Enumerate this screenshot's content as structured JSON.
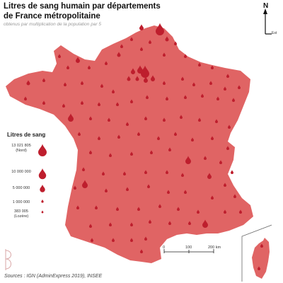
{
  "title_line1": "Litres de sang humain par départements",
  "title_line2": "de France métropolitaine",
  "subtitle": "obtenus par multiplication de la population par 5",
  "legend": {
    "title": "Litres de sang",
    "items": [
      {
        "label": "13 021 805",
        "sublabel": "(Nord)",
        "value": 13021805
      },
      {
        "label": "10 000 000",
        "sublabel": "",
        "value": 10000000
      },
      {
        "label": "5 000 000",
        "sublabel": "",
        "value": 5000000
      },
      {
        "label": "1 000 000",
        "sublabel": "",
        "value": 1000000
      },
      {
        "label": "383 005",
        "sublabel": "(Lozère)",
        "value": 383005
      }
    ]
  },
  "scale": {
    "ticks": [
      "0",
      "100",
      "200 km"
    ]
  },
  "north": {
    "n": "N",
    "e": "Est"
  },
  "sources": "Sources : IGN (AdminExpress 2019), INSEE",
  "colors": {
    "land": "#e06464",
    "drop": "#be1e2d",
    "drop_dark": "#a81a26"
  }
}
